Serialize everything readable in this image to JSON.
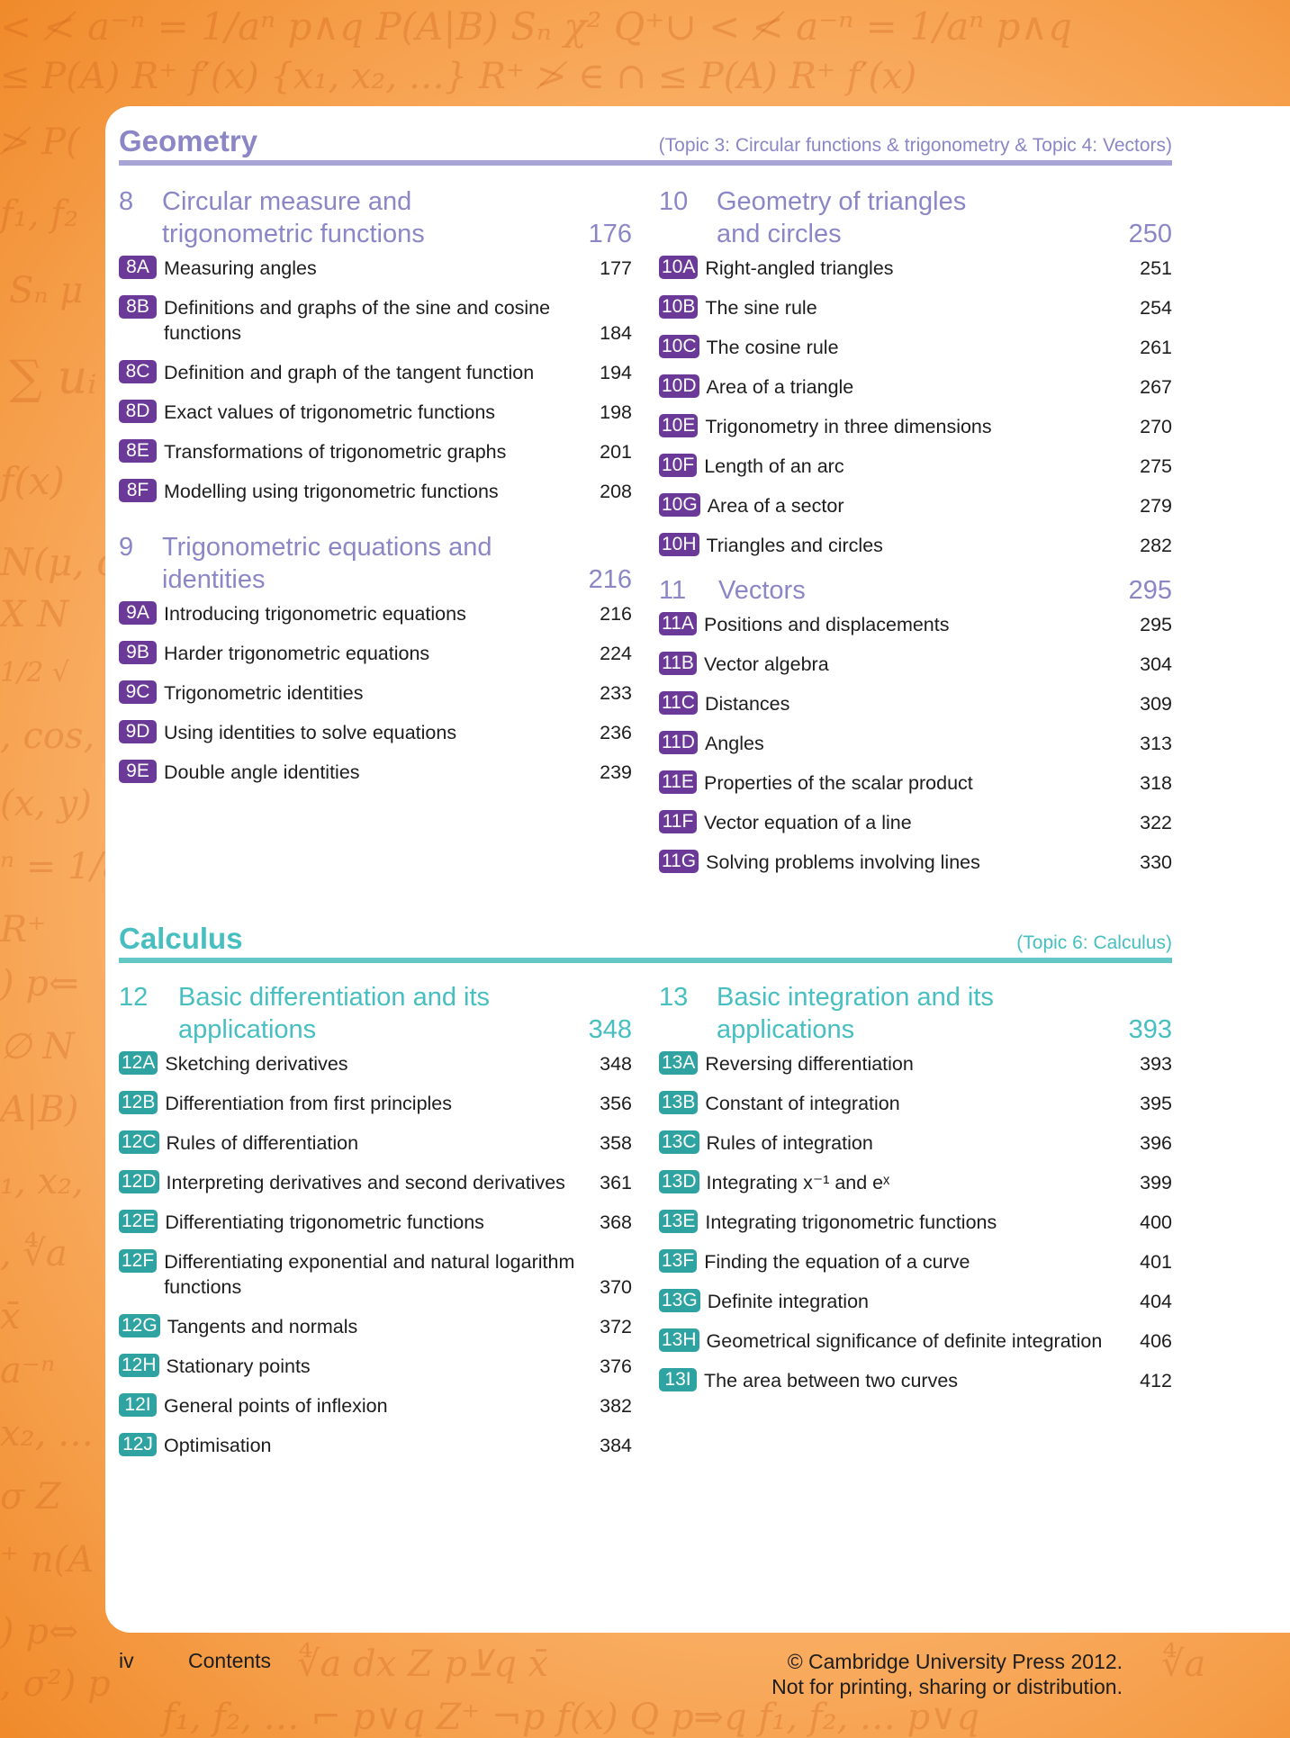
{
  "geometry": {
    "name": "Geometry",
    "topic": "(Topic 3: Circular functions & trigonometry & Topic 4: Vectors)",
    "chapters": [
      {
        "num": "8",
        "title": "Circular measure and trigonometric functions",
        "page": "176",
        "sections": [
          {
            "code": "8A",
            "title": "Measuring angles",
            "page": "177"
          },
          {
            "code": "8B",
            "title": "Definitions and graphs of the sine and cosine functions",
            "page": "184"
          },
          {
            "code": "8C",
            "title": "Definition and graph of the tangent function",
            "page": "194"
          },
          {
            "code": "8D",
            "title": "Exact values of trigonometric functions",
            "page": "198"
          },
          {
            "code": "8E",
            "title": "Transformations of trigonometric graphs",
            "page": "201"
          },
          {
            "code": "8F",
            "title": "Modelling using trigonometric functions",
            "page": "208"
          }
        ]
      },
      {
        "num": "9",
        "title": "Trigonometric equations and identities",
        "page": "216",
        "sections": [
          {
            "code": "9A",
            "title": "Introducing trigonometric equations",
            "page": "216"
          },
          {
            "code": "9B",
            "title": "Harder trigonometric equations",
            "page": "224"
          },
          {
            "code": "9C",
            "title": "Trigonometric identities",
            "page": "233"
          },
          {
            "code": "9D",
            "title": "Using identities to solve equations",
            "page": "236"
          },
          {
            "code": "9E",
            "title": "Double angle identities",
            "page": "239"
          }
        ]
      },
      {
        "num": "10",
        "title": "Geometry of triangles and circles",
        "page": "250",
        "sections": [
          {
            "code": "10A",
            "title": "Right-angled triangles",
            "page": "251"
          },
          {
            "code": "10B",
            "title": "The sine rule",
            "page": "254"
          },
          {
            "code": "10C",
            "title": "The cosine rule",
            "page": "261"
          },
          {
            "code": "10D",
            "title": "Area of a triangle",
            "page": "267"
          },
          {
            "code": "10E",
            "title": "Trigonometry in three dimensions",
            "page": "270"
          },
          {
            "code": "10F",
            "title": "Length of an arc",
            "page": "275"
          },
          {
            "code": "10G",
            "title": "Area of a sector",
            "page": "279"
          },
          {
            "code": "10H",
            "title": "Triangles and circles",
            "page": "282"
          }
        ]
      },
      {
        "num": "11",
        "title": "Vectors",
        "page": "295",
        "sections": [
          {
            "code": "11A",
            "title": "Positions and displacements",
            "page": "295"
          },
          {
            "code": "11B",
            "title": "Vector algebra",
            "page": "304"
          },
          {
            "code": "11C",
            "title": "Distances",
            "page": "309"
          },
          {
            "code": "11D",
            "title": "Angles",
            "page": "313"
          },
          {
            "code": "11E",
            "title": "Properties of the scalar product",
            "page": "318"
          },
          {
            "code": "11F",
            "title": "Vector equation of a line",
            "page": "322"
          },
          {
            "code": "11G",
            "title": "Solving problems involving lines",
            "page": "330"
          }
        ]
      }
    ]
  },
  "calculus": {
    "name": "Calculus",
    "topic": "(Topic 6: Calculus)",
    "chapters": [
      {
        "num": "12",
        "title": "Basic differentiation and its applications",
        "page": "348",
        "sections": [
          {
            "code": "12A",
            "title": "Sketching derivatives",
            "page": "348"
          },
          {
            "code": "12B",
            "title": "Differentiation from first principles",
            "page": "356"
          },
          {
            "code": "12C",
            "title": "Rules of differentiation",
            "page": "358"
          },
          {
            "code": "12D",
            "title": "Interpreting derivatives and second derivatives",
            "page": "361"
          },
          {
            "code": "12E",
            "title": "Differentiating trigonometric functions",
            "page": "368"
          },
          {
            "code": "12F",
            "title": "Differentiating exponential and natural logarithm functions",
            "page": "370"
          },
          {
            "code": "12G",
            "title": "Tangents and normals",
            "page": "372"
          },
          {
            "code": "12H",
            "title": "Stationary points",
            "page": "376"
          },
          {
            "code": "12I",
            "title": "General points of inflexion",
            "page": "382"
          },
          {
            "code": "12J",
            "title": "Optimisation",
            "page": "384"
          }
        ]
      },
      {
        "num": "13",
        "title": "Basic integration and its applications",
        "page": "393",
        "sections": [
          {
            "code": "13A",
            "title": "Reversing differentiation",
            "page": "393"
          },
          {
            "code": "13B",
            "title": "Constant of integration",
            "page": "395"
          },
          {
            "code": "13C",
            "title": "Rules of integration",
            "page": "396"
          },
          {
            "code": "13D",
            "title": "Integrating x⁻¹ and eˣ",
            "page": "399"
          },
          {
            "code": "13E",
            "title": "Integrating trigonometric functions",
            "page": "400"
          },
          {
            "code": "13F",
            "title": "Finding the equation of a curve",
            "page": "401"
          },
          {
            "code": "13G",
            "title": "Definite integration",
            "page": "404"
          },
          {
            "code": "13H",
            "title": "Geometrical significance of definite integration",
            "page": "406"
          },
          {
            "code": "13I",
            "title": "The area between two curves",
            "page": "412"
          }
        ]
      }
    ]
  },
  "footer": {
    "page_number": "iv",
    "label": "Contents",
    "copyright_line1": "© Cambridge University Press 2012.",
    "copyright_line2": "Not for printing, sharing or distribution."
  },
  "colors": {
    "geometry_accent": "#8b86c6",
    "geometry_badge": "#6b3a98",
    "calculus_accent": "#47bfc0",
    "calculus_badge": "#2fa3a1",
    "background_orange": "#f08a2a"
  }
}
